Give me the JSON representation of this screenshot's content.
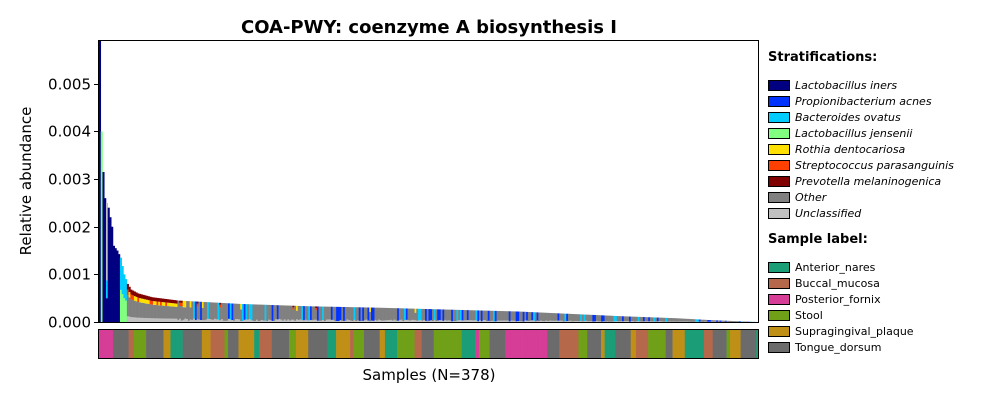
{
  "chart_data": {
    "type": "bar",
    "stacked": true,
    "title": "COA-PWY: coenzyme A biosynthesis I",
    "xlabel": "Samples (N=378)",
    "ylabel": "Relative abundance",
    "n_samples": 378,
    "ylim": [
      0,
      0.0059
    ],
    "yticks": [
      0,
      0.001,
      0.002,
      0.003,
      0.004,
      0.005
    ],
    "ytick_labels": [
      "0.000",
      "0.001",
      "0.002",
      "0.003",
      "0.004",
      "0.005"
    ],
    "grid": false,
    "legend_position": "right",
    "stratifications_heading": "Stratifications:",
    "stratifications": [
      {
        "name": "Lactobacillus iners",
        "color": "#000080"
      },
      {
        "name": "Propionibacterium acnes",
        "color": "#0033ff"
      },
      {
        "name": "Bacteroides ovatus",
        "color": "#00ccff"
      },
      {
        "name": "Lactobacillus jensenii",
        "color": "#80ff80"
      },
      {
        "name": "Rothia dentocariosa",
        "color": "#ffe000"
      },
      {
        "name": "Streptococcus parasanguinis",
        "color": "#ff4000"
      },
      {
        "name": "Prevotella melaninogenica",
        "color": "#800000"
      },
      {
        "name": "Other",
        "color": "#808080"
      },
      {
        "name": "Unclassified",
        "color": "#c0c0c0"
      }
    ],
    "sample_label_heading": "Sample label:",
    "sample_labels": [
      {
        "name": "Anterior_nares",
        "color": "#1b9e77"
      },
      {
        "name": "Buccal_mucosa",
        "color": "#b5694a"
      },
      {
        "name": "Posterior_fornix",
        "color": "#d63d96"
      },
      {
        "name": "Stool",
        "color": "#6fa017"
      },
      {
        "name": "Supragingival_plaque",
        "color": "#c08f16"
      },
      {
        "name": "Tongue_dorsum",
        "color": "#6b6b6b"
      }
    ],
    "profile_anchors": [
      [
        0,
        0.0059
      ],
      [
        1,
        0.004
      ],
      [
        2,
        0.00315
      ],
      [
        3,
        0.0026
      ],
      [
        5,
        0.0024
      ],
      [
        7,
        0.002
      ],
      [
        8,
        0.0016
      ],
      [
        10,
        0.0015
      ],
      [
        12,
        0.00135
      ],
      [
        14,
        0.001
      ],
      [
        16,
        0.0008
      ],
      [
        18,
        0.00068
      ],
      [
        22,
        0.0006
      ],
      [
        30,
        0.00052
      ],
      [
        45,
        0.00045
      ],
      [
        80,
        0.00038
      ],
      [
        120,
        0.00033
      ],
      [
        160,
        0.0003
      ],
      [
        200,
        0.00026
      ],
      [
        240,
        0.00022
      ],
      [
        270,
        0.00017
      ],
      [
        300,
        0.00012
      ],
      [
        330,
        8e-05
      ],
      [
        350,
        4e-05
      ],
      [
        377,
        0.0
      ]
    ],
    "sample_label_run_pattern": [
      "Posterior_fornix",
      "Posterior_fornix",
      "Tongue_dorsum",
      "Buccal_mucosa",
      "Stool",
      "Tongue_dorsum",
      "Supragingival_plaque",
      "Anterior_nares",
      "Tongue_dorsum",
      "Supragingival_plaque",
      "Buccal_mucosa",
      "Stool",
      "Tongue_dorsum",
      "Supragingival_plaque",
      "Anterior_nares",
      "Buccal_mucosa",
      "Tongue_dorsum",
      "Stool",
      "Supragingival_plaque",
      "Tongue_dorsum",
      "Anterior_nares",
      "Supragingival_plaque",
      "Buccal_mucosa",
      "Stool",
      "Tongue_dorsum",
      "Supragingival_plaque",
      "Anterior_nares",
      "Stool",
      "Buccal_mucosa",
      "Tongue_dorsum",
      "Stool",
      "Stool",
      "Anterior_nares",
      "Posterior_fornix",
      "Stool",
      "Tongue_dorsum",
      "Posterior_fornix",
      "Posterior_fornix"
    ]
  }
}
